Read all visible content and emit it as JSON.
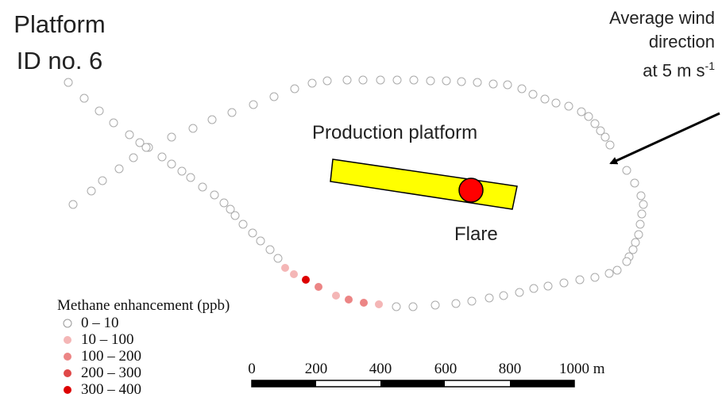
{
  "title": {
    "line1": "Platform",
    "line2": "ID no. 6"
  },
  "wind": {
    "line1": "Average wind",
    "line2": "direction",
    "line3_prefix": "at 5 m s",
    "line3_sup": "-1"
  },
  "platform": {
    "label": "Production platform",
    "fill": "#ffff00"
  },
  "flare": {
    "label": "Flare",
    "fill": "#ff0000"
  },
  "legend": {
    "title": "Methane enhancement (ppb)",
    "classes": [
      {
        "label": "0 – 10",
        "color": "none"
      },
      {
        "label": "10 – 100",
        "color": "#f4b6b6"
      },
      {
        "label": "100 – 200",
        "color": "#ec8585"
      },
      {
        "label": "200 – 300",
        "color": "#e04848"
      },
      {
        "label": "300 – 400",
        "color": "#dd0000"
      }
    ]
  },
  "scale_bar": {
    "ticks": [
      "0",
      "200",
      "400",
      "600",
      "800",
      "1000 m"
    ]
  },
  "chart_data": {
    "type": "scatter",
    "description_units": "methane enhancement class (ppb) along flight track",
    "highlighted_samples_ppb_class": [
      "10 – 100",
      "10 – 100",
      "300 – 400",
      "100 – 200",
      "10 – 100",
      "100 – 200",
      "100 – 200",
      "10 – 100"
    ]
  }
}
